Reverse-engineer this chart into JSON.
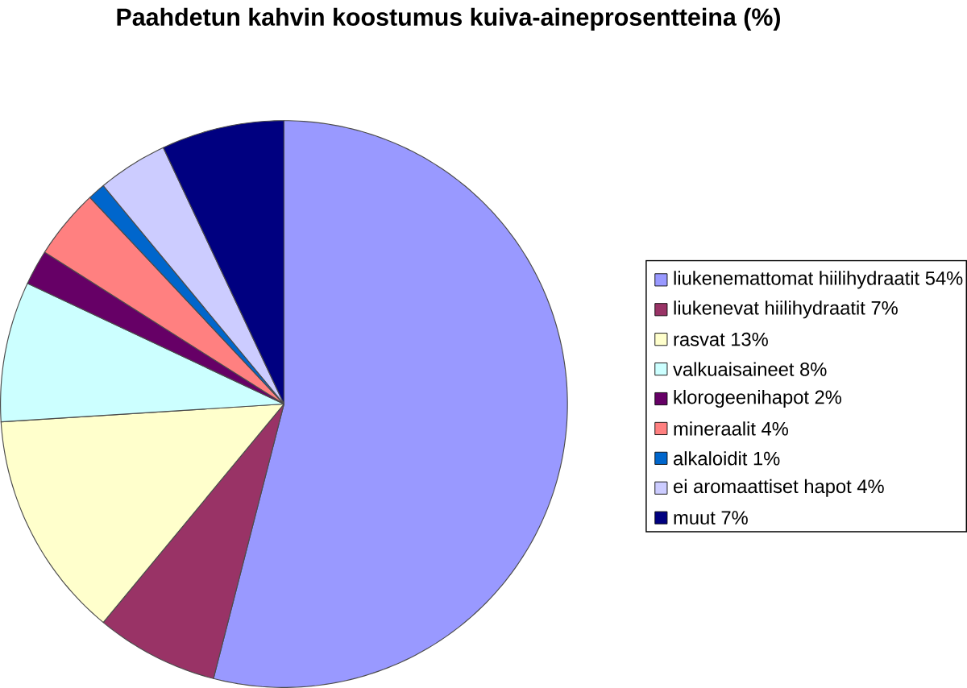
{
  "chart_data": {
    "type": "pie",
    "title": "Paahdetun kahvin koostumus kuiva-aineprosentteina (%)",
    "categories": [
      "liukenemattomat hiilihydraatit 54%",
      "liukenevat hiilihydraatit 7%",
      "rasvat 13%",
      "valkuaisaineet 8%",
      "klorogeenihapot 2%",
      "mineraalit 4%",
      "alkaloidit 1%",
      "ei aromaattiset hapot 4%",
      "muut 7%"
    ],
    "values": [
      54,
      7,
      13,
      8,
      2,
      4,
      1,
      4,
      7
    ],
    "colors": [
      "#9999ff",
      "#993366",
      "#ffffcc",
      "#ccffff",
      "#660066",
      "#ff8080",
      "#0066cc",
      "#ccccff",
      "#000080"
    ],
    "legend": "right"
  }
}
